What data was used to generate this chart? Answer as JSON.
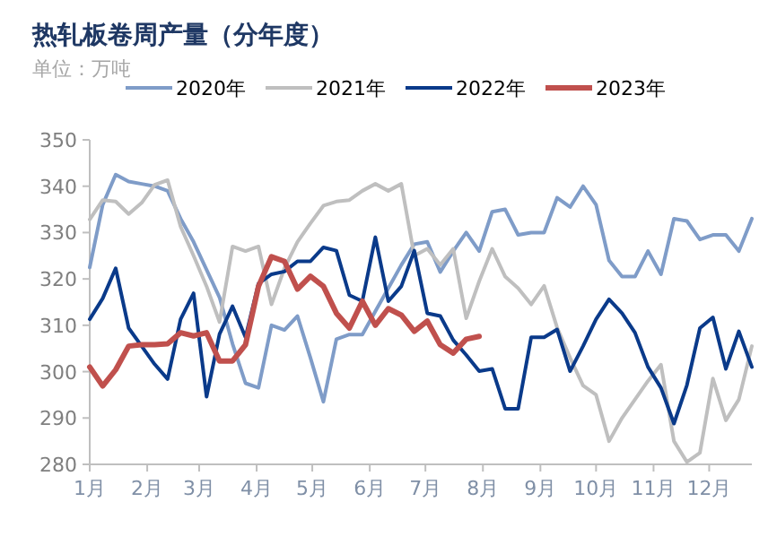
{
  "chart_data": {
    "type": "line",
    "title": "热轧板卷周产量（分年度）",
    "subtitle": "单位：万吨",
    "x": [
      "--01-01",
      "--01-08",
      "--01-15",
      "--01-22",
      "--01-29",
      "--02-05",
      "--02-12",
      "--02-19",
      "--02-26",
      "--03-05",
      "--03-12",
      "--03-19",
      "--03-26",
      "--04-02",
      "--04-09",
      "--04-16",
      "--04-23",
      "--04-30",
      "--05-07",
      "--05-14",
      "--05-21",
      "--05-28",
      "--06-04",
      "--06-11",
      "--06-18",
      "--06-25",
      "--07-02",
      "--07-09",
      "--07-16",
      "--07-23",
      "--07-30",
      "--08-06",
      "--08-13",
      "--08-20",
      "--08-27",
      "--09-03",
      "--09-10",
      "--09-17",
      "--09-24",
      "--10-01",
      "--10-08",
      "--10-15",
      "--10-22",
      "--10-29",
      "--11-05",
      "--11-12",
      "--11-19",
      "--11-26",
      "--12-03",
      "--12-10",
      "--12-17",
      "--12-24"
    ],
    "xlim": [
      "--01-01",
      "--12-24"
    ],
    "xticks": [
      {
        "value": "--01-01",
        "label": "1月"
      },
      {
        "value": "--02-01",
        "label": "2月"
      },
      {
        "value": "--03-01",
        "label": "3月"
      },
      {
        "value": "--04-01",
        "label": "4月"
      },
      {
        "value": "--05-01",
        "label": "5月"
      },
      {
        "value": "--06-01",
        "label": "6月"
      },
      {
        "value": "--07-01",
        "label": "7月"
      },
      {
        "value": "--08-01",
        "label": "8月"
      },
      {
        "value": "--09-01",
        "label": "9月"
      },
      {
        "value": "--10-01",
        "label": "10月"
      },
      {
        "value": "--11-01",
        "label": "11月"
      },
      {
        "value": "--12-01",
        "label": "12月"
      }
    ],
    "ylim": [
      280,
      350
    ],
    "yticks": [
      280,
      290,
      300,
      310,
      320,
      330,
      340,
      350
    ],
    "grid": false,
    "legend": "top",
    "marker": "none",
    "line_style": "solid",
    "series": [
      {
        "name": "2020年",
        "color": "#7f9cc8",
        "values": [
          322.5,
          336,
          342.5,
          341,
          340.5,
          340,
          339,
          333,
          328,
          322,
          316,
          306,
          297.5,
          296.5,
          310,
          309,
          312,
          303,
          293.5,
          307,
          308,
          308,
          313,
          318,
          323,
          327.5,
          328,
          321.5,
          326,
          330,
          326,
          334.5,
          335,
          329.5,
          330,
          330,
          337.5,
          335.5,
          340,
          336,
          324,
          320.5,
          320.5,
          326,
          321,
          333,
          332.5,
          328.5,
          329.5,
          329.5,
          326,
          333
        ]
      },
      {
        "name": "2021年",
        "color": "#bfbfbf",
        "values": [
          332.8,
          337,
          336.7,
          334,
          336.4,
          340.3,
          341.3,
          331.3,
          325,
          318.4,
          310.7,
          327,
          326,
          327,
          314.5,
          322.3,
          328,
          332,
          335.8,
          336.7,
          337,
          339,
          340.5,
          339,
          340.5,
          325,
          326.5,
          323,
          326.5,
          311.5,
          319.5,
          326.5,
          320.5,
          318,
          314.5,
          318.5,
          309.5,
          303,
          297,
          295,
          285,
          290,
          294,
          298,
          301.5,
          285,
          280.5,
          282.5,
          298.5,
          289.5,
          294,
          305.5
        ]
      },
      {
        "name": "2022年",
        "color": "#0a3a8a",
        "values": [
          311.3,
          315.8,
          322.3,
          309.4,
          305.5,
          301.6,
          298.4,
          311.3,
          316.9,
          294.6,
          308.1,
          314.1,
          307.4,
          319,
          321,
          321.6,
          323.8,
          323.8,
          326.8,
          326.1,
          316.5,
          315.2,
          329,
          315.2,
          318.4,
          326.1,
          312.6,
          312,
          306.8,
          303.6,
          300.1,
          300.6,
          292,
          292,
          307.4,
          307.4,
          309.1,
          300.1,
          305.5,
          311.3,
          315.6,
          312.6,
          308.4,
          301,
          296.5,
          288.8,
          297.1,
          309.4,
          311.7,
          300.6,
          308.7,
          301
        ]
      },
      {
        "name": "2023年",
        "color": "#c0504d",
        "x": [
          "--01-01",
          "--01-08",
          "--01-15",
          "--01-22",
          "--01-29",
          "--02-05",
          "--02-12",
          "--02-19",
          "--02-26",
          "--03-05",
          "--03-12",
          "--03-19",
          "--03-26",
          "--04-02",
          "--04-09",
          "--04-16",
          "--04-23",
          "--04-30",
          "--05-07",
          "--05-14",
          "--05-21",
          "--05-28",
          "--06-04",
          "--06-11",
          "--06-18",
          "--06-25",
          "--07-02",
          "--07-09",
          "--07-16",
          "--07-23",
          "--07-30"
        ],
        "values": [
          301,
          296.9,
          300.4,
          305.5,
          305.8,
          305.8,
          306,
          308.4,
          307.7,
          308.4,
          302.3,
          302.3,
          305.8,
          318.4,
          324.8,
          323.8,
          317.8,
          320.6,
          318.4,
          312.6,
          309.4,
          315.2,
          310,
          313.6,
          312.2,
          308.7,
          310.9,
          305.8,
          304,
          307,
          307.6
        ]
      }
    ]
  }
}
